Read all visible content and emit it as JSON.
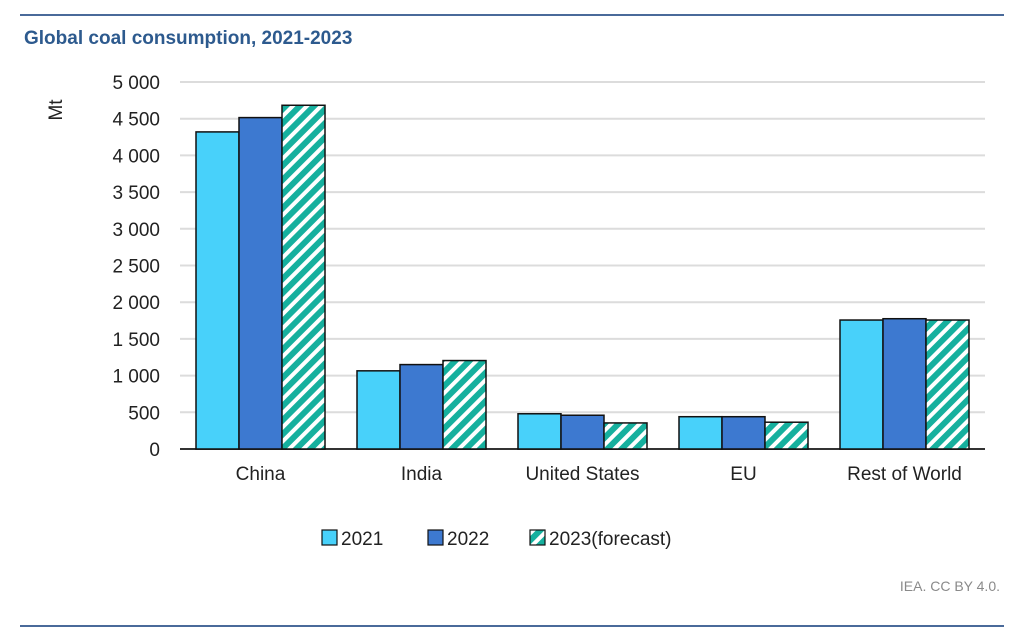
{
  "chart_data": {
    "type": "bar",
    "title": "Global coal consumption, 2021-2023",
    "ylabel": "Mt",
    "xlabel": "",
    "ylim": [
      0,
      5000
    ],
    "yticks": [
      "0",
      "500",
      "1 000",
      "1 500",
      "2 000",
      "2 500",
      "3 000",
      "3 500",
      "4 000",
      "4 500",
      "5 000"
    ],
    "grid": true,
    "legend": "bottom",
    "categories": [
      "China",
      "India",
      "United States",
      "EU",
      "Rest of World"
    ],
    "series": [
      {
        "name": "2021",
        "color": "#48d1fa",
        "pattern": "solid",
        "values": [
          4320,
          1065,
          480,
          440,
          1757
        ]
      },
      {
        "name": "2022",
        "color": "#3d79d0",
        "pattern": "solid",
        "values": [
          4515,
          1150,
          460,
          440,
          1775
        ]
      },
      {
        "name": "2023(forecast)",
        "color": "#16b09e",
        "pattern": "hatched",
        "values": [
          4683,
          1205,
          355,
          365,
          1757
        ]
      }
    ]
  },
  "source": "IEA. CC BY 4.0."
}
